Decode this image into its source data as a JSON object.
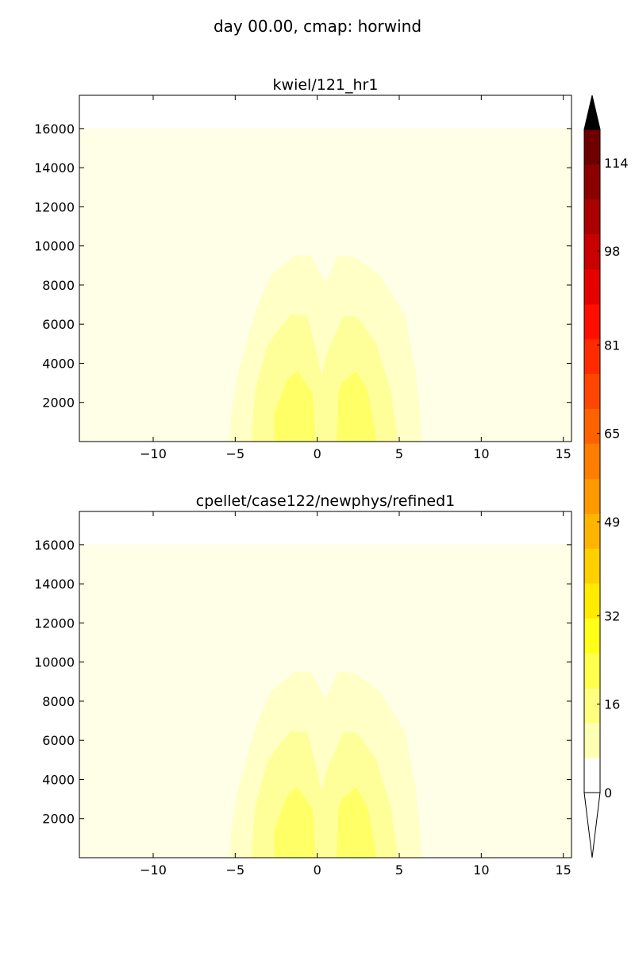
{
  "suptitle": "day 00.00, cmap: horwind",
  "chart_data": [
    {
      "type": "contourf",
      "title": "kwiel/121_hr1",
      "xlabel": "",
      "ylabel": "",
      "xlim": [
        -14.5,
        15.5
      ],
      "ylim": [
        0,
        17700
      ],
      "xticks": [
        -10,
        -5,
        0,
        5,
        10,
        15
      ],
      "xtick_labels": [
        "−10",
        "−5",
        "0",
        "5",
        "10",
        "15"
      ],
      "yticks": [
        2000,
        4000,
        6000,
        8000,
        10000,
        12000,
        14000,
        16000
      ],
      "ytick_labels": [
        "2000",
        "4000",
        "6000",
        "8000",
        "10000",
        "12000",
        "14000",
        "16000"
      ],
      "field_top": 16000,
      "regions": [
        {
          "level": 1,
          "color": "#fffee6",
          "points": [
            [
              -14.5,
              0
            ],
            [
              15.5,
              0
            ],
            [
              15.5,
              16000
            ],
            [
              -14.5,
              16000
            ]
          ]
        },
        {
          "level": 2,
          "color": "#ffffc6",
          "points": [
            [
              -5.3,
              0
            ],
            [
              -5.3,
              1000
            ],
            [
              -4.8,
              3500
            ],
            [
              -3.8,
              6500
            ],
            [
              -2.8,
              8500
            ],
            [
              -1.3,
              9500
            ],
            [
              -0.4,
              9500
            ],
            [
              0.5,
              8100
            ],
            [
              1.3,
              9500
            ],
            [
              2.3,
              9400
            ],
            [
              3.8,
              8500
            ],
            [
              5.3,
              6500
            ],
            [
              6.0,
              3500
            ],
            [
              6.3,
              1000
            ],
            [
              6.3,
              0
            ]
          ]
        },
        {
          "level": 3,
          "color": "#ffff9a",
          "points": [
            [
              -4.0,
              0
            ],
            [
              -3.8,
              2500
            ],
            [
              -3.0,
              5000
            ],
            [
              -1.6,
              6500
            ],
            [
              -0.6,
              6400
            ],
            [
              0.3,
              3300
            ],
            [
              0.6,
              4500
            ],
            [
              1.6,
              6400
            ],
            [
              2.4,
              6400
            ],
            [
              3.6,
              5000
            ],
            [
              4.5,
              2500
            ],
            [
              4.9,
              0
            ]
          ]
        },
        {
          "level": 4,
          "color": "#ffff66",
          "points": [
            [
              -2.6,
              0
            ],
            [
              -2.6,
              1500
            ],
            [
              -1.8,
              3200
            ],
            [
              -1.2,
              3600
            ],
            [
              -0.3,
              2500
            ],
            [
              -0.1,
              0
            ],
            [
              1.2,
              0
            ],
            [
              1.3,
              2500
            ],
            [
              1.5,
              3000
            ],
            [
              2.4,
              3600
            ],
            [
              3.1,
              2500
            ],
            [
              3.6,
              0
            ]
          ]
        }
      ]
    },
    {
      "type": "contourf",
      "title": "cpellet/case122/newphys/refined1",
      "xlabel": "",
      "ylabel": "",
      "xlim": [
        -14.5,
        15.5
      ],
      "ylim": [
        0,
        17700
      ],
      "xticks": [
        -10,
        -5,
        0,
        5,
        10,
        15
      ],
      "xtick_labels": [
        "−10",
        "−5",
        "0",
        "5",
        "10",
        "15"
      ],
      "yticks": [
        2000,
        4000,
        6000,
        8000,
        10000,
        12000,
        14000,
        16000
      ],
      "ytick_labels": [
        "2000",
        "4000",
        "6000",
        "8000",
        "10000",
        "12000",
        "14000",
        "16000"
      ],
      "field_top": 16000,
      "regions": [
        {
          "level": 1,
          "color": "#fffee6",
          "points": [
            [
              -14.5,
              0
            ],
            [
              15.5,
              0
            ],
            [
              15.5,
              16000
            ],
            [
              -14.5,
              16000
            ]
          ]
        },
        {
          "level": 2,
          "color": "#ffffc6",
          "points": [
            [
              -5.3,
              0
            ],
            [
              -5.3,
              1000
            ],
            [
              -4.8,
              3500
            ],
            [
              -3.8,
              6500
            ],
            [
              -2.8,
              8500
            ],
            [
              -1.3,
              9500
            ],
            [
              -0.4,
              9500
            ],
            [
              0.5,
              8100
            ],
            [
              1.3,
              9500
            ],
            [
              2.3,
              9400
            ],
            [
              3.8,
              8500
            ],
            [
              5.3,
              6500
            ],
            [
              6.0,
              3500
            ],
            [
              6.3,
              1000
            ],
            [
              6.3,
              0
            ]
          ]
        },
        {
          "level": 3,
          "color": "#ffff9a",
          "points": [
            [
              -4.0,
              0
            ],
            [
              -3.8,
              2500
            ],
            [
              -3.0,
              5000
            ],
            [
              -1.6,
              6500
            ],
            [
              -0.6,
              6400
            ],
            [
              0.3,
              3300
            ],
            [
              0.6,
              4500
            ],
            [
              1.6,
              6400
            ],
            [
              2.4,
              6400
            ],
            [
              3.6,
              5000
            ],
            [
              4.5,
              2500
            ],
            [
              4.9,
              0
            ]
          ]
        },
        {
          "level": 4,
          "color": "#ffff66",
          "points": [
            [
              -2.6,
              0
            ],
            [
              -2.6,
              1500
            ],
            [
              -1.8,
              3200
            ],
            [
              -1.2,
              3600
            ],
            [
              -0.3,
              2500
            ],
            [
              -0.1,
              0
            ],
            [
              1.2,
              0
            ],
            [
              1.3,
              2500
            ],
            [
              1.5,
              3000
            ],
            [
              2.4,
              3600
            ],
            [
              3.1,
              2500
            ],
            [
              3.6,
              0
            ]
          ]
        }
      ]
    }
  ],
  "colorbar": {
    "range": [
      0,
      120
    ],
    "levels": [
      0,
      6.3,
      12.6,
      18.9,
      25.3,
      31.6,
      37.9,
      44.2,
      50.5,
      56.8,
      63.2,
      69.5,
      75.8,
      82.1,
      88.4,
      94.7,
      101.1,
      107.4,
      113.7,
      120
    ],
    "colors": [
      "#ffffff",
      "#ffffb3",
      "#ffff80",
      "#ffff4d",
      "#ffff1a",
      "#ffeb00",
      "#ffd000",
      "#ffb400",
      "#ff9900",
      "#ff7d00",
      "#ff6200",
      "#ff4600",
      "#ff2b00",
      "#ff0f00",
      "#e60000",
      "#c80000",
      "#aa0000",
      "#8c0000",
      "#6e0000"
    ],
    "under_color": "#ffffff",
    "over_color": "#000000",
    "ticks": [
      0,
      16,
      32,
      49,
      65,
      81,
      98,
      114
    ],
    "tick_labels": [
      "0",
      "16",
      "32",
      "49",
      "65",
      "81",
      "98",
      "114"
    ]
  }
}
